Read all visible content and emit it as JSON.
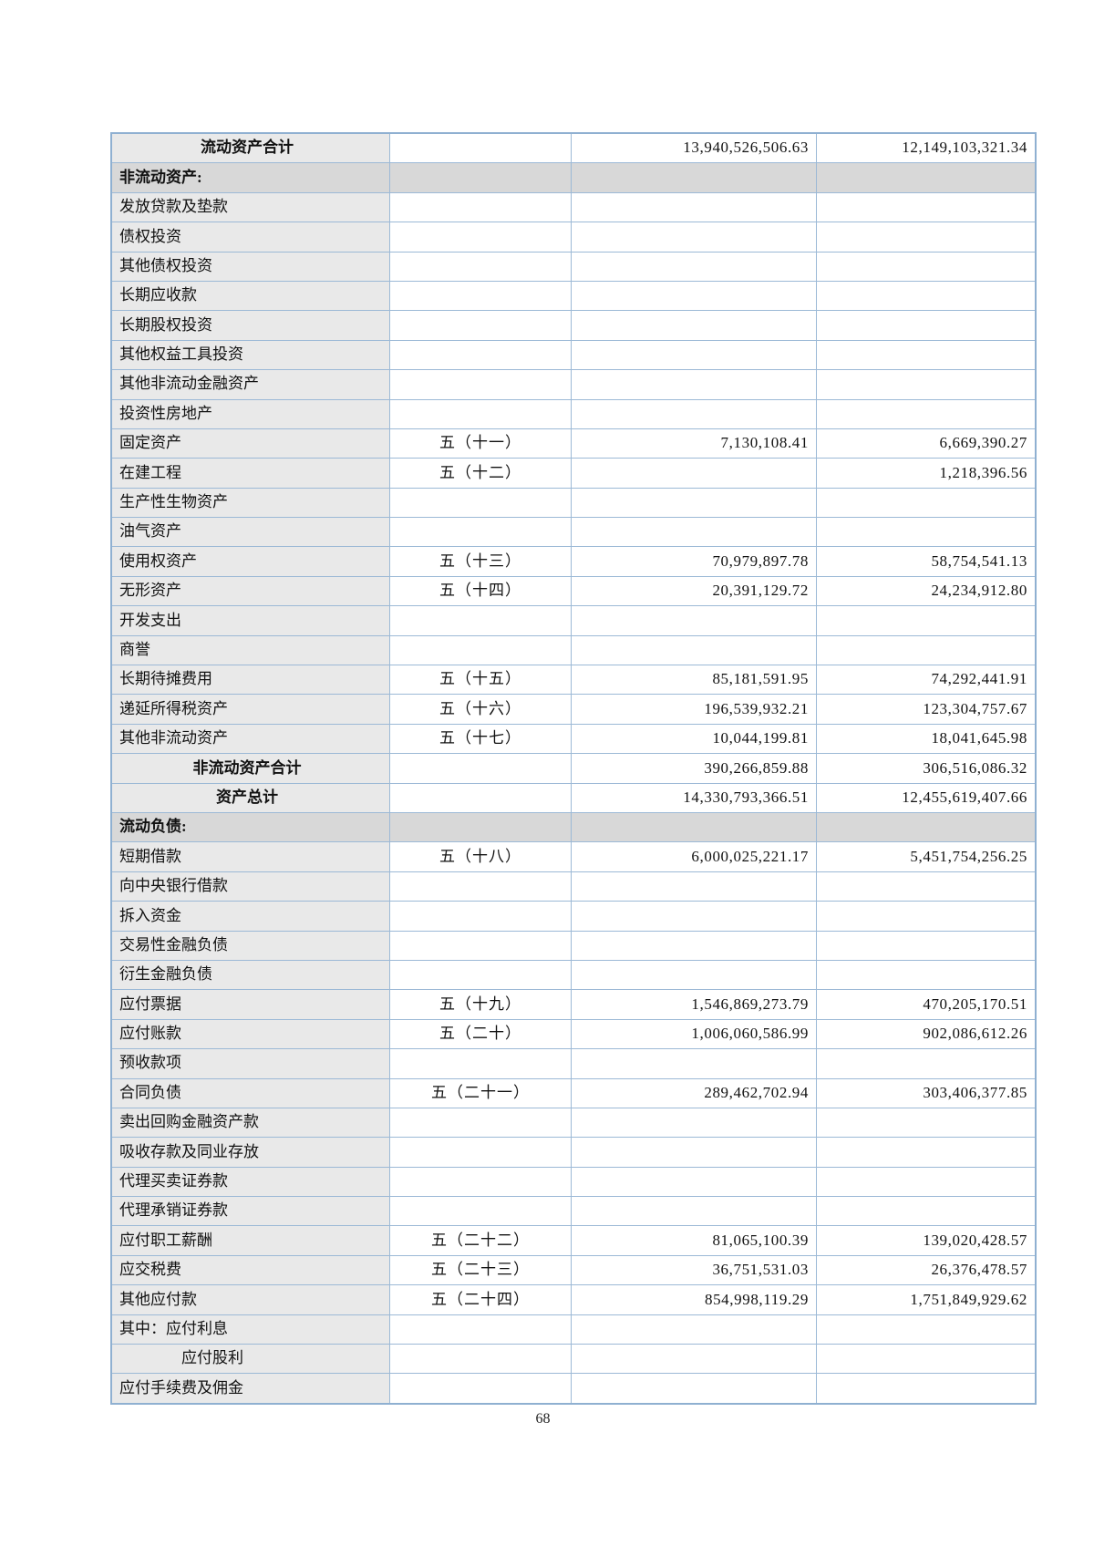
{
  "page": {
    "number": "68"
  },
  "colors": {
    "table_border": "#9cb9d6",
    "label_column_bg": "#e9e9e9",
    "section_row_bg": "#d8d8d8",
    "page_bg": "#ffffff",
    "text": "#111111"
  },
  "table": {
    "columns": [
      "item",
      "note",
      "amount_current",
      "amount_prior"
    ],
    "rows": [
      {
        "type": "total",
        "item": "流动资产合计",
        "note": "",
        "current": "13,940,526,506.63",
        "prior": "12,149,103,321.34"
      },
      {
        "type": "section",
        "item": "非流动资产:",
        "note": "",
        "current": "",
        "prior": ""
      },
      {
        "type": "item",
        "item": "发放贷款及垫款",
        "note": "",
        "current": "",
        "prior": ""
      },
      {
        "type": "item",
        "item": "债权投资",
        "note": "",
        "current": "",
        "prior": ""
      },
      {
        "type": "item",
        "item": "其他债权投资",
        "note": "",
        "current": "",
        "prior": ""
      },
      {
        "type": "item",
        "item": "长期应收款",
        "note": "",
        "current": "",
        "prior": ""
      },
      {
        "type": "item",
        "item": "长期股权投资",
        "note": "",
        "current": "",
        "prior": ""
      },
      {
        "type": "item",
        "item": "其他权益工具投资",
        "note": "",
        "current": "",
        "prior": ""
      },
      {
        "type": "item",
        "item": "其他非流动金融资产",
        "note": "",
        "current": "",
        "prior": ""
      },
      {
        "type": "item",
        "item": "投资性房地产",
        "note": "",
        "current": "",
        "prior": ""
      },
      {
        "type": "item",
        "item": "固定资产",
        "note": "五（十一）",
        "current": "7,130,108.41",
        "prior": "6,669,390.27"
      },
      {
        "type": "item",
        "item": "在建工程",
        "note": "五（十二）",
        "current": "",
        "prior": "1,218,396.56"
      },
      {
        "type": "item",
        "item": "生产性生物资产",
        "note": "",
        "current": "",
        "prior": ""
      },
      {
        "type": "item",
        "item": "油气资产",
        "note": "",
        "current": "",
        "prior": ""
      },
      {
        "type": "item",
        "item": "使用权资产",
        "note": "五（十三）",
        "current": "70,979,897.78",
        "prior": "58,754,541.13"
      },
      {
        "type": "item",
        "item": "无形资产",
        "note": "五（十四）",
        "current": "20,391,129.72",
        "prior": "24,234,912.80"
      },
      {
        "type": "item",
        "item": "开发支出",
        "note": "",
        "current": "",
        "prior": ""
      },
      {
        "type": "item",
        "item": "商誉",
        "note": "",
        "current": "",
        "prior": ""
      },
      {
        "type": "item",
        "item": "长期待摊费用",
        "note": "五（十五）",
        "current": "85,181,591.95",
        "prior": "74,292,441.91"
      },
      {
        "type": "item",
        "item": "递延所得税资产",
        "note": "五（十六）",
        "current": "196,539,932.21",
        "prior": "123,304,757.67"
      },
      {
        "type": "item",
        "item": "其他非流动资产",
        "note": "五（十七）",
        "current": "10,044,199.81",
        "prior": "18,041,645.98"
      },
      {
        "type": "total",
        "item": "非流动资产合计",
        "note": "",
        "current": "390,266,859.88",
        "prior": "306,516,086.32"
      },
      {
        "type": "total",
        "item": "资产总计",
        "note": "",
        "current": "14,330,793,366.51",
        "prior": "12,455,619,407.66"
      },
      {
        "type": "section",
        "item": "流动负债:",
        "note": "",
        "current": "",
        "prior": ""
      },
      {
        "type": "item",
        "item": "短期借款",
        "note": "五（十八）",
        "current": "6,000,025,221.17",
        "prior": "5,451,754,256.25"
      },
      {
        "type": "item",
        "item": "向中央银行借款",
        "note": "",
        "current": "",
        "prior": ""
      },
      {
        "type": "item",
        "item": "拆入资金",
        "note": "",
        "current": "",
        "prior": ""
      },
      {
        "type": "item",
        "item": "交易性金融负债",
        "note": "",
        "current": "",
        "prior": ""
      },
      {
        "type": "item",
        "item": "衍生金融负债",
        "note": "",
        "current": "",
        "prior": ""
      },
      {
        "type": "item",
        "item": "应付票据",
        "note": "五（十九）",
        "current": "1,546,869,273.79",
        "prior": "470,205,170.51"
      },
      {
        "type": "item",
        "item": "应付账款",
        "note": "五（二十）",
        "current": "1,006,060,586.99",
        "prior": "902,086,612.26"
      },
      {
        "type": "item",
        "item": "预收款项",
        "note": "",
        "current": "",
        "prior": ""
      },
      {
        "type": "item",
        "item": "合同负债",
        "note": "五（二十一）",
        "current": "289,462,702.94",
        "prior": "303,406,377.85"
      },
      {
        "type": "item",
        "item": "卖出回购金融资产款",
        "note": "",
        "current": "",
        "prior": ""
      },
      {
        "type": "item",
        "item": "吸收存款及同业存放",
        "note": "",
        "current": "",
        "prior": ""
      },
      {
        "type": "item",
        "item": "代理买卖证券款",
        "note": "",
        "current": "",
        "prior": ""
      },
      {
        "type": "item",
        "item": "代理承销证券款",
        "note": "",
        "current": "",
        "prior": ""
      },
      {
        "type": "item",
        "item": "应付职工薪酬",
        "note": "五（二十二）",
        "current": "81,065,100.39",
        "prior": "139,020,428.57"
      },
      {
        "type": "item",
        "item": "应交税费",
        "note": "五（二十三）",
        "current": "36,751,531.03",
        "prior": "26,376,478.57"
      },
      {
        "type": "item",
        "item": "其他应付款",
        "note": "五（二十四）",
        "current": "854,998,119.29",
        "prior": "1,751,849,929.62"
      },
      {
        "type": "item",
        "item": "其中：应付利息",
        "note": "",
        "current": "",
        "prior": ""
      },
      {
        "type": "indent",
        "item": "应付股利",
        "note": "",
        "current": "",
        "prior": ""
      },
      {
        "type": "item",
        "item": "应付手续费及佣金",
        "note": "",
        "current": "",
        "prior": ""
      }
    ]
  }
}
